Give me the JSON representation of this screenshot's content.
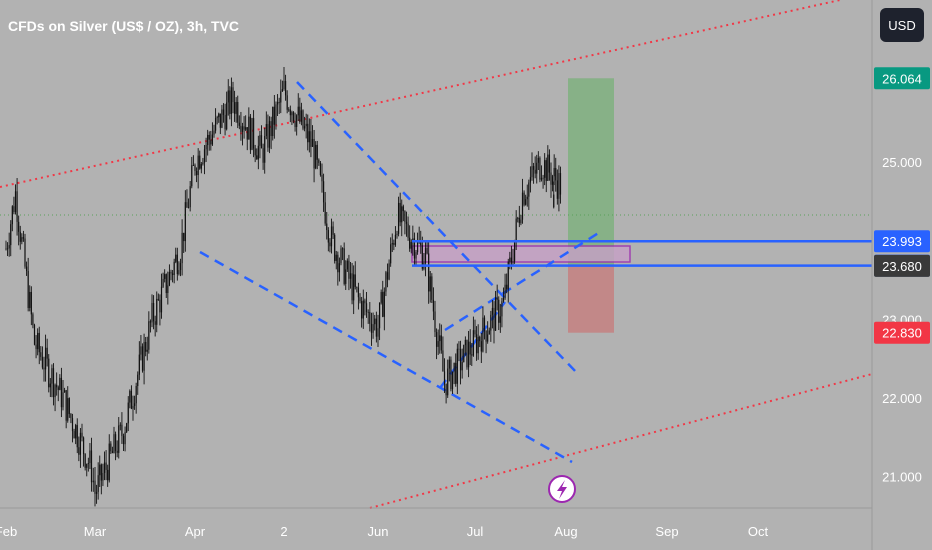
{
  "title": "CFDs on Silver (US$ / OZ), 3h, TVC",
  "currency_button": "USD",
  "chart_data": {
    "type": "candlestick",
    "title": "CFDs on Silver (US$ / OZ), 3h, TVC",
    "x_ticks": [
      "Feb",
      "Mar",
      "Apr",
      "2",
      "Jun",
      "Jul",
      "Aug",
      "Sep",
      "Oct"
    ],
    "y_ticks": [
      21.0,
      22.0,
      23.0,
      25.0
    ],
    "ylim": [
      20.6,
      26.4
    ],
    "price_path": [
      {
        "t": "Feb",
        "v": 23.9
      },
      {
        "t": "Feb+0.1",
        "v": 24.6
      },
      {
        "t": "Feb+0.3",
        "v": 22.7
      },
      {
        "t": "Feb+0.6",
        "v": 22.0
      },
      {
        "t": "Feb+0.9",
        "v": 21.1
      },
      {
        "t": "Mar",
        "v": 20.8
      },
      {
        "t": "Mar+0.3",
        "v": 21.6
      },
      {
        "t": "Mar+0.6",
        "v": 23.0
      },
      {
        "t": "Mar+0.9",
        "v": 23.9
      },
      {
        "t": "Apr",
        "v": 25.0
      },
      {
        "t": "Apr+0.4",
        "v": 25.8
      },
      {
        "t": "Apr+0.7",
        "v": 25.1
      },
      {
        "t": "2",
        "v": 25.9
      },
      {
        "t": "2+0.3",
        "v": 25.2
      },
      {
        "t": "2+0.5",
        "v": 24.0
      },
      {
        "t": "2+0.8",
        "v": 23.2
      },
      {
        "t": "Jun",
        "v": 22.9
      },
      {
        "t": "Jun+0.2",
        "v": 24.3
      },
      {
        "t": "Jun+0.5",
        "v": 23.8
      },
      {
        "t": "Jun+0.7",
        "v": 22.2
      },
      {
        "t": "Jul",
        "v": 22.7
      },
      {
        "t": "Jul+0.3",
        "v": 23.2
      },
      {
        "t": "Jul+0.5",
        "v": 24.6
      },
      {
        "t": "Jul+0.7",
        "v": 25.0
      },
      {
        "t": "Jul+0.9",
        "v": 24.7
      },
      {
        "t": "Aug-0.2",
        "v": 23.9
      }
    ],
    "labels": [
      {
        "value": 26.064,
        "text": "26.064",
        "color": "#089981"
      },
      {
        "value": 23.993,
        "text": "23.993",
        "color": "#2962ff"
      },
      {
        "value": 23.682,
        "text": "23.682",
        "color": "#2962ff"
      },
      {
        "value": 23.68,
        "text": "23.680",
        "color": "#3a3a3a"
      },
      {
        "value": 22.83,
        "text": "22.830",
        "color": "#f23645"
      }
    ],
    "hlines": [
      23.993,
      23.682
    ],
    "current_price": 23.68,
    "position": {
      "entry": 23.68,
      "target": 26.064,
      "stop": 22.83
    },
    "colors": {
      "background": "#b2b2b2",
      "candle": "#111111",
      "trend": "#2962ff",
      "channel": "#f23645",
      "profit": "#7fb07f",
      "loss": "#c48080"
    }
  }
}
